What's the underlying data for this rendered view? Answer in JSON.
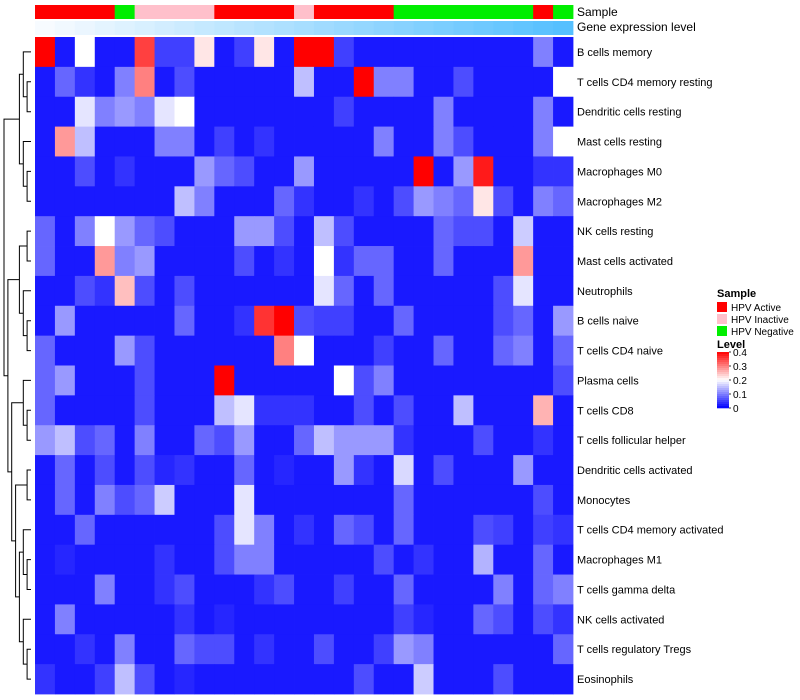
{
  "chart_data": {
    "type": "heatmap",
    "annotation_tracks": [
      "Sample",
      "Gene expression level"
    ],
    "row_labels": [
      "B cells memory",
      "T cells CD4 memory resting",
      "Dendritic cells resting",
      "Mast cells resting",
      "Macrophages M0",
      "Macrophages M2",
      "NK cells resting",
      "Mast cells activated",
      "Neutrophils",
      "B cells naive",
      "T cells CD4 naive",
      "Plasma cells",
      "T cells CD8",
      "T cells follicular helper",
      "Dendritic cells activated",
      "Monocytes",
      "T cells CD4 memory activated",
      "Macrophages M1",
      "T cells gamma delta",
      "NK cells activated",
      "T cells regulatory  Tregs",
      "Eosinophils"
    ],
    "sample_groups": [
      "HPV Active",
      "HPV Active",
      "HPV Active",
      "HPV Active",
      "HPV Negative",
      "HPV Inactive",
      "HPV Inactive",
      "HPV Inactive",
      "HPV Inactive",
      "HPV Active",
      "HPV Active",
      "HPV Active",
      "HPV Active",
      "HPV Inactive",
      "HPV Active",
      "HPV Active",
      "HPV Active",
      "HPV Active",
      "HPV Negative",
      "HPV Negative",
      "HPV Negative",
      "HPV Negative",
      "HPV Negative",
      "HPV Negative",
      "HPV Negative",
      "HPV Active",
      "HPV Negative"
    ],
    "gene_expression_levels": [
      0.05,
      0.1,
      0.15,
      0.2,
      0.25,
      0.3,
      0.35,
      0.4,
      0.45,
      0.5,
      0.55,
      0.6,
      0.65,
      0.7,
      0.75,
      0.8,
      0.85,
      0.9,
      0.95,
      1.0,
      1.05,
      1.1,
      1.15,
      1.2,
      1.25,
      1.3,
      1.35
    ],
    "values": [
      [
        0.4,
        0.02,
        0.2,
        0.02,
        0.02,
        0.35,
        0.05,
        0.05,
        0.22,
        0.02,
        0.05,
        0.22,
        0.02,
        0.4,
        0.4,
        0.05,
        0.02,
        0.02,
        0.02,
        0.02,
        0.02,
        0.02,
        0.02,
        0.02,
        0.02,
        0.1,
        0.02
      ],
      [
        0.02,
        0.08,
        0.04,
        0.02,
        0.1,
        0.3,
        0.02,
        0.06,
        0.02,
        0.02,
        0.02,
        0.02,
        0.02,
        0.15,
        0.02,
        0.02,
        0.4,
        0.1,
        0.1,
        0.02,
        0.02,
        0.06,
        0.02,
        0.02,
        0.02,
        0.02,
        0.2
      ],
      [
        0.02,
        0.02,
        0.18,
        0.1,
        0.12,
        0.1,
        0.18,
        0.2,
        0.02,
        0.02,
        0.02,
        0.02,
        0.02,
        0.02,
        0.02,
        0.05,
        0.02,
        0.02,
        0.02,
        0.02,
        0.1,
        0.02,
        0.02,
        0.02,
        0.02,
        0.1,
        0.02
      ],
      [
        0.02,
        0.28,
        0.15,
        0.02,
        0.02,
        0.02,
        0.1,
        0.1,
        0.02,
        0.05,
        0.02,
        0.04,
        0.02,
        0.02,
        0.02,
        0.02,
        0.02,
        0.1,
        0.02,
        0.02,
        0.1,
        0.06,
        0.02,
        0.02,
        0.02,
        0.1,
        0.2
      ],
      [
        0.02,
        0.02,
        0.06,
        0.02,
        0.04,
        0.02,
        0.02,
        0.02,
        0.12,
        0.08,
        0.06,
        0.02,
        0.02,
        0.12,
        0.02,
        0.02,
        0.02,
        0.02,
        0.02,
        0.4,
        0.02,
        0.12,
        0.38,
        0.02,
        0.02,
        0.04,
        0.04
      ],
      [
        0.02,
        0.02,
        0.02,
        0.02,
        0.02,
        0.02,
        0.02,
        0.15,
        0.1,
        0.02,
        0.02,
        0.02,
        0.08,
        0.04,
        0.02,
        0.02,
        0.04,
        0.02,
        0.06,
        0.12,
        0.1,
        0.08,
        0.22,
        0.06,
        0.02,
        0.1,
        0.08
      ],
      [
        0.08,
        0.02,
        0.1,
        0.2,
        0.12,
        0.08,
        0.06,
        0.02,
        0.02,
        0.02,
        0.12,
        0.12,
        0.06,
        0.02,
        0.15,
        0.06,
        0.02,
        0.02,
        0.02,
        0.02,
        0.08,
        0.06,
        0.06,
        0.02,
        0.16,
        0.02,
        0.02
      ],
      [
        0.08,
        0.02,
        0.02,
        0.28,
        0.1,
        0.12,
        0.02,
        0.02,
        0.02,
        0.02,
        0.06,
        0.02,
        0.04,
        0.02,
        0.2,
        0.04,
        0.08,
        0.08,
        0.02,
        0.02,
        0.08,
        0.02,
        0.02,
        0.02,
        0.28,
        0.02,
        0.02
      ],
      [
        0.02,
        0.02,
        0.06,
        0.04,
        0.25,
        0.06,
        0.02,
        0.06,
        0.02,
        0.02,
        0.02,
        0.02,
        0.02,
        0.02,
        0.18,
        0.08,
        0.02,
        0.08,
        0.02,
        0.02,
        0.02,
        0.02,
        0.02,
        0.06,
        0.18,
        0.02,
        0.02
      ],
      [
        0.02,
        0.12,
        0.02,
        0.02,
        0.02,
        0.02,
        0.02,
        0.08,
        0.02,
        0.02,
        0.04,
        0.36,
        0.4,
        0.06,
        0.05,
        0.05,
        0.02,
        0.02,
        0.08,
        0.02,
        0.02,
        0.02,
        0.02,
        0.06,
        0.08,
        0.02,
        0.12
      ],
      [
        0.08,
        0.02,
        0.02,
        0.02,
        0.12,
        0.06,
        0.02,
        0.02,
        0.02,
        0.02,
        0.02,
        0.02,
        0.3,
        0.2,
        0.02,
        0.02,
        0.02,
        0.05,
        0.02,
        0.02,
        0.08,
        0.02,
        0.02,
        0.08,
        0.1,
        0.02,
        0.08
      ],
      [
        0.08,
        0.12,
        0.02,
        0.02,
        0.02,
        0.06,
        0.02,
        0.02,
        0.02,
        0.4,
        0.02,
        0.02,
        0.02,
        0.02,
        0.02,
        0.2,
        0.06,
        0.1,
        0.02,
        0.02,
        0.02,
        0.02,
        0.02,
        0.02,
        0.02,
        0.02,
        0.06
      ],
      [
        0.08,
        0.02,
        0.02,
        0.02,
        0.02,
        0.06,
        0.02,
        0.02,
        0.02,
        0.15,
        0.18,
        0.04,
        0.04,
        0.04,
        0.02,
        0.02,
        0.06,
        0.02,
        0.06,
        0.02,
        0.02,
        0.15,
        0.02,
        0.02,
        0.02,
        0.26,
        0.02
      ],
      [
        0.12,
        0.15,
        0.06,
        0.08,
        0.02,
        0.1,
        0.02,
        0.02,
        0.08,
        0.06,
        0.12,
        0.02,
        0.02,
        0.08,
        0.15,
        0.12,
        0.12,
        0.12,
        0.04,
        0.02,
        0.02,
        0.02,
        0.06,
        0.02,
        0.02,
        0.04,
        0.02
      ],
      [
        0.02,
        0.08,
        0.02,
        0.06,
        0.02,
        0.06,
        0.03,
        0.04,
        0.02,
        0.02,
        0.08,
        0.02,
        0.03,
        0.02,
        0.02,
        0.12,
        0.04,
        0.02,
        0.17,
        0.02,
        0.06,
        0.02,
        0.02,
        0.02,
        0.12,
        0.02,
        0.02
      ],
      [
        0.02,
        0.08,
        0.02,
        0.1,
        0.06,
        0.08,
        0.16,
        0.02,
        0.02,
        0.02,
        0.18,
        0.02,
        0.02,
        0.02,
        0.02,
        0.02,
        0.02,
        0.02,
        0.08,
        0.02,
        0.02,
        0.02,
        0.02,
        0.02,
        0.02,
        0.06,
        0.02
      ],
      [
        0.02,
        0.02,
        0.08,
        0.02,
        0.02,
        0.02,
        0.02,
        0.02,
        0.02,
        0.06,
        0.18,
        0.1,
        0.02,
        0.04,
        0.02,
        0.08,
        0.06,
        0.02,
        0.08,
        0.02,
        0.02,
        0.02,
        0.06,
        0.05,
        0.02,
        0.05,
        0.04
      ],
      [
        0.02,
        0.03,
        0.02,
        0.02,
        0.02,
        0.02,
        0.04,
        0.02,
        0.02,
        0.06,
        0.1,
        0.1,
        0.02,
        0.02,
        0.02,
        0.02,
        0.02,
        0.06,
        0.02,
        0.04,
        0.02,
        0.02,
        0.14,
        0.02,
        0.02,
        0.08,
        0.02
      ],
      [
        0.02,
        0.02,
        0.02,
        0.1,
        0.02,
        0.02,
        0.04,
        0.06,
        0.02,
        0.02,
        0.02,
        0.04,
        0.06,
        0.02,
        0.02,
        0.05,
        0.02,
        0.02,
        0.08,
        0.02,
        0.02,
        0.02,
        0.02,
        0.1,
        0.02,
        0.08,
        0.1
      ],
      [
        0.02,
        0.1,
        0.02,
        0.02,
        0.02,
        0.02,
        0.02,
        0.04,
        0.02,
        0.03,
        0.02,
        0.02,
        0.02,
        0.02,
        0.02,
        0.02,
        0.02,
        0.02,
        0.05,
        0.03,
        0.02,
        0.02,
        0.08,
        0.06,
        0.02,
        0.06,
        0.04
      ],
      [
        0.02,
        0.02,
        0.04,
        0.02,
        0.1,
        0.02,
        0.02,
        0.08,
        0.06,
        0.06,
        0.02,
        0.04,
        0.02,
        0.02,
        0.06,
        0.02,
        0.02,
        0.05,
        0.12,
        0.1,
        0.02,
        0.02,
        0.02,
        0.02,
        0.02,
        0.02,
        0.08
      ],
      [
        0.04,
        0.02,
        0.02,
        0.05,
        0.15,
        0.06,
        0.02,
        0.03,
        0.02,
        0.02,
        0.02,
        0.02,
        0.02,
        0.02,
        0.02,
        0.02,
        0.06,
        0.02,
        0.02,
        0.16,
        0.02,
        0.02,
        0.02,
        0.06,
        0.02,
        0.02,
        0.02
      ]
    ],
    "legend_sample": {
      "title": "Sample",
      "items": [
        {
          "label": "HPV Active",
          "color": "#ff0000"
        },
        {
          "label": "HPV Inactive",
          "color": "#ffc0cb"
        },
        {
          "label": "HPV Negative",
          "color": "#00ee00"
        }
      ]
    },
    "legend_level": {
      "title": "Level",
      "ticks": [
        "0.4",
        "0.3",
        "0.2",
        "0.1",
        "0"
      ],
      "tick_values": [
        0.4,
        0.3,
        0.2,
        0.1,
        0
      ],
      "range": [
        0,
        0.4
      ]
    },
    "colorscale": [
      "#0000ff",
      "#ffffff",
      "#ff0000"
    ],
    "expression_colorscale": [
      "#f7fbff",
      "#56c0ff"
    ]
  }
}
